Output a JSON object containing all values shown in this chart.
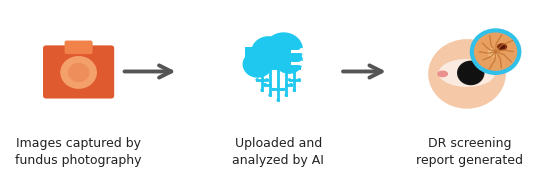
{
  "bg_color": "#ffffff",
  "arrow_color": "#555555",
  "camera_body_color": "#E05A30",
  "camera_top_color": "#F0824A",
  "camera_lens_color": "#F4A06A",
  "cloud_color": "#1FC8EE",
  "cloud_white": "#ffffff",
  "eye_skin_color": "#F5C9A8",
  "eye_white_color": "#FAEAE0",
  "eye_iris_color": "#222222",
  "eye_pink_color": "#E88080",
  "retina_bg_color": "#E8A060",
  "retina_border_color": "#30C0E8",
  "retina_vessel_color": "#C07030",
  "retina_lesion_color": "#8B3010",
  "labels": [
    "Images captured by\nfundus photography",
    "Uploaded and\nanalyzed by AI",
    "DR screening\nreport generated"
  ],
  "label_fontsize": 9,
  "label_color": "#222222",
  "figsize": [
    5.52,
    1.75
  ],
  "dpi": 100
}
